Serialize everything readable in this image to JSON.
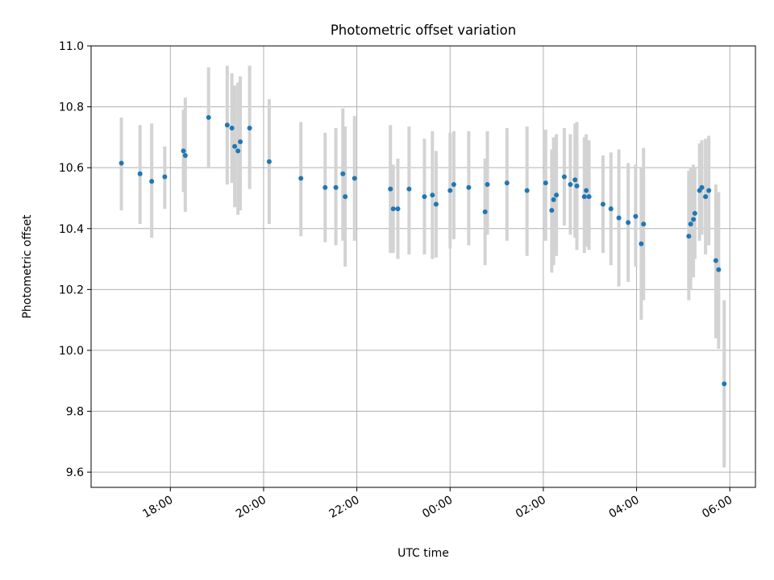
{
  "chart_data": {
    "type": "scatter",
    "title": "Photometric offset variation",
    "xlabel": "UTC time",
    "ylabel": "Photometric offset",
    "x_unit": "hours since 00:00 UTC",
    "xlim": [
      -7.7,
      6.55
    ],
    "ylim": [
      9.55,
      11.0
    ],
    "xticks": [
      {
        "value": -6,
        "label": "18:00"
      },
      {
        "value": -4,
        "label": "20:00"
      },
      {
        "value": -2,
        "label": "22:00"
      },
      {
        "value": 0,
        "label": "00:00"
      },
      {
        "value": 2,
        "label": "02:00"
      },
      {
        "value": 4,
        "label": "04:00"
      },
      {
        "value": 6,
        "label": "06:00"
      }
    ],
    "yticks": [
      {
        "value": 9.6,
        "label": "9.6"
      },
      {
        "value": 9.8,
        "label": "9.8"
      },
      {
        "value": 10.0,
        "label": "10.0"
      },
      {
        "value": 10.2,
        "label": "10.2"
      },
      {
        "value": 10.4,
        "label": "10.4"
      },
      {
        "value": 10.6,
        "label": "10.6"
      },
      {
        "value": 10.8,
        "label": "10.8"
      },
      {
        "value": 11.0,
        "label": "11.0"
      }
    ],
    "grid": true,
    "colors": {
      "point": "#1f77b4",
      "errorbar": "#d3d3d3",
      "grid": "#b0b0b0",
      "axis": "#000000"
    },
    "series": [
      {
        "name": "offset",
        "points": [
          {
            "x": -7.05,
            "y": 10.615,
            "lo": 10.46,
            "hi": 10.765
          },
          {
            "x": -6.65,
            "y": 10.58,
            "lo": 10.415,
            "hi": 10.74
          },
          {
            "x": -6.4,
            "y": 10.555,
            "lo": 10.37,
            "hi": 10.745
          },
          {
            "x": -6.12,
            "y": 10.57,
            "lo": 10.465,
            "hi": 10.67
          },
          {
            "x": -5.72,
            "y": 10.655,
            "lo": 10.52,
            "hi": 10.79
          },
          {
            "x": -5.68,
            "y": 10.64,
            "lo": 10.455,
            "hi": 10.83
          },
          {
            "x": -5.18,
            "y": 10.765,
            "lo": 10.6,
            "hi": 10.93
          },
          {
            "x": -4.78,
            "y": 10.74,
            "lo": 10.545,
            "hi": 10.935
          },
          {
            "x": -4.68,
            "y": 10.73,
            "lo": 10.55,
            "hi": 10.91
          },
          {
            "x": -4.62,
            "y": 10.67,
            "lo": 10.47,
            "hi": 10.87
          },
          {
            "x": -4.55,
            "y": 10.655,
            "lo": 10.445,
            "hi": 10.88
          },
          {
            "x": -4.5,
            "y": 10.685,
            "lo": 10.46,
            "hi": 10.9
          },
          {
            "x": -4.3,
            "y": 10.73,
            "lo": 10.53,
            "hi": 10.935
          },
          {
            "x": -3.88,
            "y": 10.62,
            "lo": 10.415,
            "hi": 10.825
          },
          {
            "x": -3.2,
            "y": 10.565,
            "lo": 10.375,
            "hi": 10.75
          },
          {
            "x": -2.68,
            "y": 10.535,
            "lo": 10.355,
            "hi": 10.715
          },
          {
            "x": -2.45,
            "y": 10.535,
            "lo": 10.345,
            "hi": 10.73
          },
          {
            "x": -2.3,
            "y": 10.58,
            "lo": 10.36,
            "hi": 10.795
          },
          {
            "x": -2.25,
            "y": 10.505,
            "lo": 10.275,
            "hi": 10.735
          },
          {
            "x": -2.05,
            "y": 10.565,
            "lo": 10.36,
            "hi": 10.77
          },
          {
            "x": -1.28,
            "y": 10.53,
            "lo": 10.32,
            "hi": 10.74
          },
          {
            "x": -1.22,
            "y": 10.465,
            "lo": 10.32,
            "hi": 10.61
          },
          {
            "x": -1.12,
            "y": 10.465,
            "lo": 10.3,
            "hi": 10.63
          },
          {
            "x": -0.88,
            "y": 10.53,
            "lo": 10.315,
            "hi": 10.735
          },
          {
            "x": -0.55,
            "y": 10.505,
            "lo": 10.315,
            "hi": 10.695
          },
          {
            "x": -0.38,
            "y": 10.51,
            "lo": 10.3,
            "hi": 10.72
          },
          {
            "x": -0.3,
            "y": 10.48,
            "lo": 10.305,
            "hi": 10.655
          },
          {
            "x": 0.0,
            "y": 10.525,
            "lo": 10.335,
            "hi": 10.715
          },
          {
            "x": 0.08,
            "y": 10.545,
            "lo": 10.365,
            "hi": 10.72
          },
          {
            "x": 0.4,
            "y": 10.535,
            "lo": 10.345,
            "hi": 10.72
          },
          {
            "x": 0.75,
            "y": 10.455,
            "lo": 10.28,
            "hi": 10.63
          },
          {
            "x": 0.8,
            "y": 10.545,
            "lo": 10.38,
            "hi": 10.72
          },
          {
            "x": 1.22,
            "y": 10.55,
            "lo": 10.36,
            "hi": 10.73
          },
          {
            "x": 1.65,
            "y": 10.525,
            "lo": 10.31,
            "hi": 10.735
          },
          {
            "x": 2.05,
            "y": 10.55,
            "lo": 10.36,
            "hi": 10.725
          },
          {
            "x": 2.18,
            "y": 10.46,
            "lo": 10.255,
            "hi": 10.66
          },
          {
            "x": 2.22,
            "y": 10.495,
            "lo": 10.28,
            "hi": 10.7
          },
          {
            "x": 2.28,
            "y": 10.51,
            "lo": 10.31,
            "hi": 10.71
          },
          {
            "x": 2.45,
            "y": 10.57,
            "lo": 10.41,
            "hi": 10.73
          },
          {
            "x": 2.58,
            "y": 10.545,
            "lo": 10.38,
            "hi": 10.71
          },
          {
            "x": 2.68,
            "y": 10.56,
            "lo": 10.37,
            "hi": 10.745
          },
          {
            "x": 2.72,
            "y": 10.54,
            "lo": 10.33,
            "hi": 10.75
          },
          {
            "x": 2.88,
            "y": 10.505,
            "lo": 10.32,
            "hi": 10.7
          },
          {
            "x": 2.92,
            "y": 10.525,
            "lo": 10.34,
            "hi": 10.71
          },
          {
            "x": 2.98,
            "y": 10.505,
            "lo": 10.33,
            "hi": 10.69
          },
          {
            "x": 3.28,
            "y": 10.48,
            "lo": 10.32,
            "hi": 10.64
          },
          {
            "x": 3.45,
            "y": 10.465,
            "lo": 10.28,
            "hi": 10.65
          },
          {
            "x": 3.62,
            "y": 10.435,
            "lo": 10.21,
            "hi": 10.66
          },
          {
            "x": 3.82,
            "y": 10.42,
            "lo": 10.225,
            "hi": 10.615
          },
          {
            "x": 3.98,
            "y": 10.44,
            "lo": 10.275,
            "hi": 10.61
          },
          {
            "x": 4.1,
            "y": 10.35,
            "lo": 10.1,
            "hi": 10.6
          },
          {
            "x": 4.15,
            "y": 10.415,
            "lo": 10.165,
            "hi": 10.665
          },
          {
            "x": 5.12,
            "y": 10.375,
            "lo": 10.165,
            "hi": 10.59
          },
          {
            "x": 5.16,
            "y": 10.415,
            "lo": 10.2,
            "hi": 10.6
          },
          {
            "x": 5.22,
            "y": 10.43,
            "lo": 10.24,
            "hi": 10.61
          },
          {
            "x": 5.25,
            "y": 10.45,
            "lo": 10.3,
            "hi": 10.6
          },
          {
            "x": 5.35,
            "y": 10.525,
            "lo": 10.36,
            "hi": 10.68
          },
          {
            "x": 5.4,
            "y": 10.535,
            "lo": 10.38,
            "hi": 10.69
          },
          {
            "x": 5.48,
            "y": 10.505,
            "lo": 10.315,
            "hi": 10.695
          },
          {
            "x": 5.55,
            "y": 10.525,
            "lo": 10.345,
            "hi": 10.705
          },
          {
            "x": 5.7,
            "y": 10.295,
            "lo": 10.04,
            "hi": 10.545
          },
          {
            "x": 5.76,
            "y": 10.265,
            "lo": 10.005,
            "hi": 10.52
          },
          {
            "x": 5.88,
            "y": 9.89,
            "lo": 9.615,
            "hi": 10.165
          }
        ]
      }
    ]
  }
}
